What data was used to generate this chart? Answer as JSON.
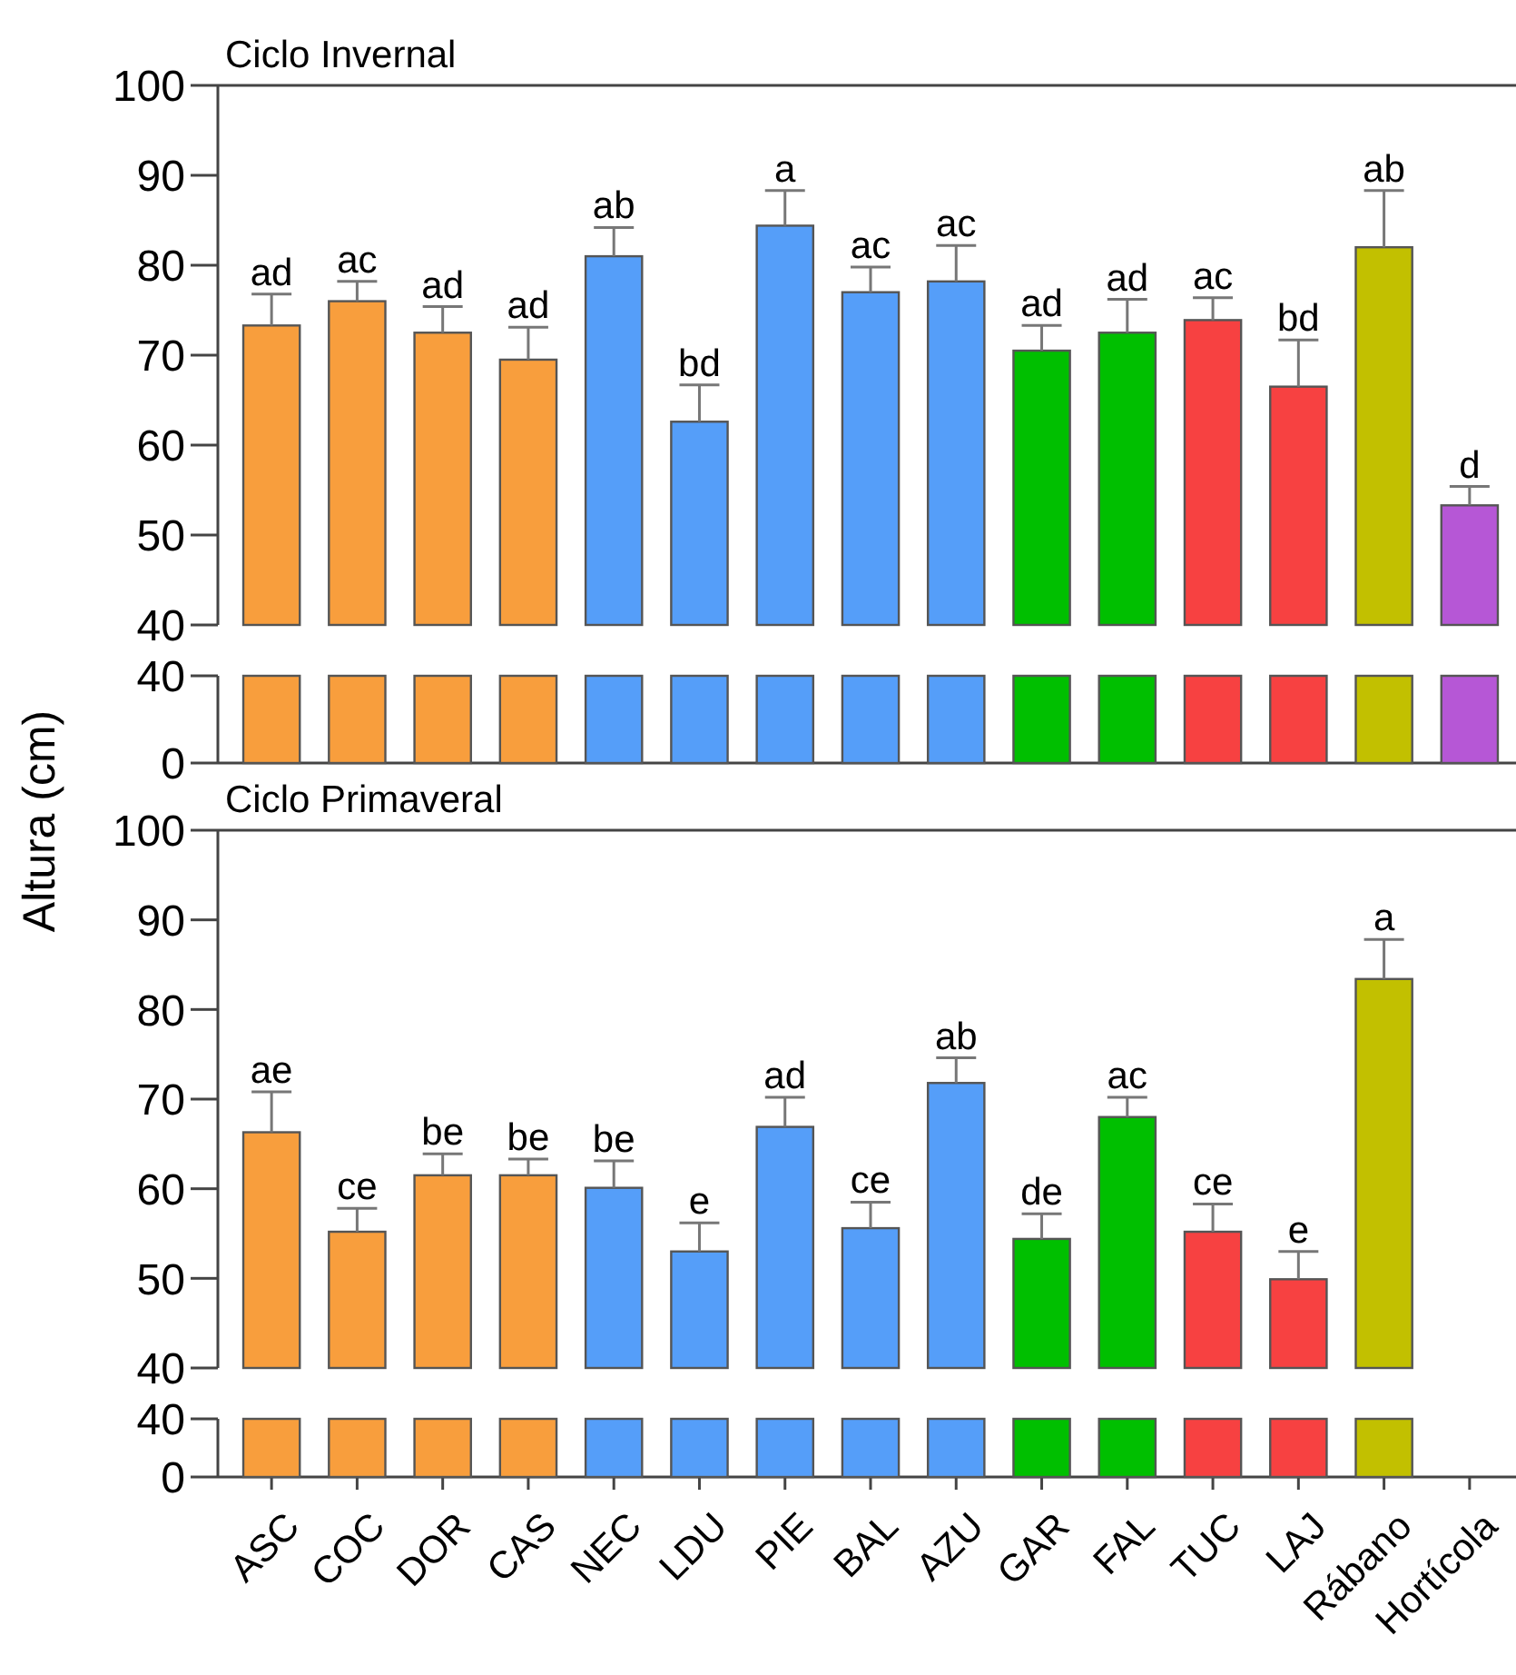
{
  "chart_data": [
    {
      "type": "bar",
      "title": "Ciclo Invernal",
      "ylabel": "Altura (cm)",
      "tick_labels": "y",
      "categories": [
        null,
        null,
        null,
        null,
        null,
        null,
        null,
        null,
        null,
        null,
        null,
        null,
        null,
        null,
        null
      ],
      "values": [
        73.3,
        76.0,
        72.5,
        69.5,
        81.0,
        62.6,
        84.4,
        77.0,
        78.2,
        70.5,
        72.5,
        73.9,
        66.5,
        82.0,
        53.3
      ],
      "errors": [
        3.5,
        2.2,
        2.9,
        3.6,
        3.2,
        4.1,
        3.9,
        2.8,
        4.0,
        2.8,
        3.7,
        2.5,
        5.2,
        6.3,
        2.1
      ],
      "value_labels": [
        "ad",
        "ac",
        "ad",
        "ad",
        "ab",
        "bd",
        "a",
        "ac",
        "ac",
        "ad",
        "ad",
        "ac",
        "bd",
        "ab",
        "d"
      ],
      "colors": [
        "#f89e3d",
        "#f89e3d",
        "#f89e3d",
        "#f89e3d",
        "#559ef9",
        "#559ef9",
        "#559ef9",
        "#559ef9",
        "#559ef9",
        "#00bf00",
        "#00bf00",
        "#f74141",
        "#f74141",
        "#c2c000",
        "#b657d6"
      ],
      "ylim": [
        40,
        100
      ],
      "yticks": [
        40,
        50,
        60,
        70,
        80,
        90,
        100
      ]
    },
    {
      "type": "bar",
      "tick_labels": "y",
      "categories": [
        null,
        null,
        null,
        null,
        null,
        null,
        null,
        null,
        null,
        null,
        null,
        null,
        null,
        null,
        null
      ],
      "values": [
        40,
        40,
        40,
        40,
        40,
        40,
        40,
        40,
        40,
        40,
        40,
        40,
        40,
        40,
        40
      ],
      "colors": [
        "#f89e3d",
        "#f89e3d",
        "#f89e3d",
        "#f89e3d",
        "#559ef9",
        "#559ef9",
        "#559ef9",
        "#559ef9",
        "#559ef9",
        "#00bf00",
        "#00bf00",
        "#f74141",
        "#f74141",
        "#c2c000",
        "#b657d6"
      ],
      "ylim": [
        0,
        40
      ],
      "yticks": [
        0,
        40
      ]
    },
    {
      "type": "bar",
      "title": "Ciclo Primaveral",
      "tick_labels": "y",
      "categories": [
        null,
        null,
        null,
        null,
        null,
        null,
        null,
        null,
        null,
        null,
        null,
        null,
        null,
        null,
        null
      ],
      "values": [
        66.3,
        55.2,
        61.5,
        61.5,
        60.1,
        53.0,
        66.9,
        55.6,
        71.8,
        54.4,
        68.0,
        55.2,
        49.9,
        83.4,
        null
      ],
      "errors": [
        4.5,
        2.6,
        2.4,
        1.8,
        3.0,
        3.2,
        3.3,
        2.9,
        2.8,
        2.8,
        2.2,
        3.1,
        3.1,
        4.4,
        null
      ],
      "value_labels": [
        "ae",
        "ce",
        "be",
        "be",
        "be",
        "e",
        "ad",
        "ce",
        "ab",
        "de",
        "ac",
        "ce",
        "e",
        "a",
        null
      ],
      "colors": [
        "#f89e3d",
        "#f89e3d",
        "#f89e3d",
        "#f89e3d",
        "#559ef9",
        "#559ef9",
        "#559ef9",
        "#559ef9",
        "#559ef9",
        "#00bf00",
        "#00bf00",
        "#f74141",
        "#f74141",
        "#c2c000",
        null
      ],
      "ylim": [
        40,
        100
      ],
      "yticks": [
        40,
        50,
        60,
        70,
        80,
        90,
        100
      ]
    },
    {
      "type": "bar",
      "categories": [
        "ASC",
        "COC",
        "DOR",
        "CAS",
        "NEC",
        "LDU",
        "PIE",
        "BAL",
        "AZU",
        "GAR",
        "FAL",
        "TUC",
        "LAJ",
        "Rábano",
        "Hortícola"
      ],
      "values": [
        40,
        40,
        40,
        40,
        40,
        40,
        40,
        40,
        40,
        40,
        40,
        40,
        40,
        40,
        null
      ],
      "colors": [
        "#f89e3d",
        "#f89e3d",
        "#f89e3d",
        "#f89e3d",
        "#559ef9",
        "#559ef9",
        "#559ef9",
        "#559ef9",
        "#559ef9",
        "#00bf00",
        "#00bf00",
        "#f74141",
        "#f74141",
        "#c2c000",
        null
      ],
      "ylim": [
        0,
        40
      ],
      "yticks": [
        0,
        40
      ]
    }
  ]
}
